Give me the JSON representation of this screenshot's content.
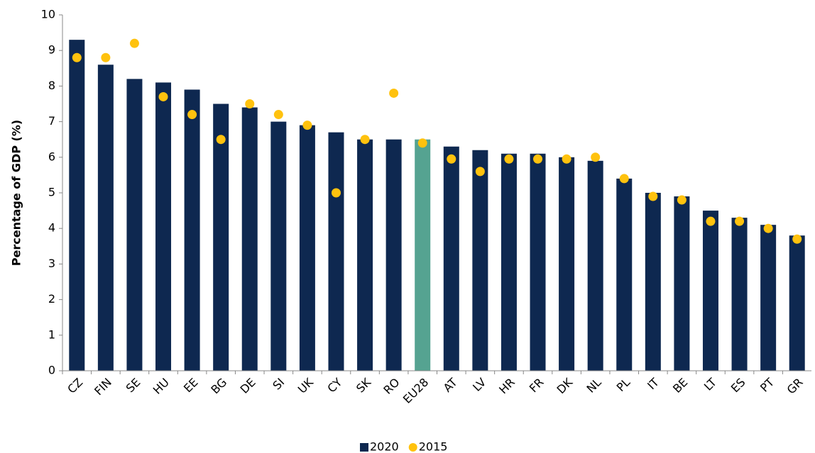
{
  "chart_data": {
    "type": "bar",
    "ylabel": "Percentage of GDP (%)",
    "categories": [
      "CZ",
      "FIN",
      "SE",
      "HU",
      "EE",
      "BG",
      "DE",
      "SI",
      "UK",
      "CY",
      "SK",
      "RO",
      "EU28",
      "AT",
      "LV",
      "HR",
      "FR",
      "DK",
      "NL",
      "PL",
      "IT",
      "BE",
      "LT",
      "ES",
      "PT",
      "GR"
    ],
    "series": [
      {
        "name": "2020",
        "type": "bar",
        "color": "#0e2850",
        "colors": [
          "#0e2850",
          "#0e2850",
          "#0e2850",
          "#0e2850",
          "#0e2850",
          "#0e2850",
          "#0e2850",
          "#0e2850",
          "#0e2850",
          "#0e2850",
          "#0e2850",
          "#0e2850",
          "#55a391",
          "#0e2850",
          "#0e2850",
          "#0e2850",
          "#0e2850",
          "#0e2850",
          "#0e2850",
          "#0e2850",
          "#0e2850",
          "#0e2850",
          "#0e2850",
          "#0e2850",
          "#0e2850",
          "#0e2850"
        ],
        "values": [
          9.3,
          8.6,
          8.2,
          8.1,
          7.9,
          7.5,
          7.4,
          7.0,
          6.9,
          6.7,
          6.5,
          6.5,
          6.5,
          6.3,
          6.2,
          6.1,
          6.1,
          6.0,
          5.9,
          5.4,
          5.0,
          4.9,
          4.5,
          4.3,
          4.1,
          3.8
        ]
      },
      {
        "name": "2015",
        "type": "scatter",
        "color": "#ffc20e",
        "values": [
          8.8,
          8.8,
          9.2,
          7.7,
          7.2,
          6.5,
          7.5,
          7.2,
          6.9,
          5.0,
          6.5,
          7.8,
          6.4,
          5.95,
          5.6,
          5.95,
          5.95,
          5.95,
          6.0,
          5.4,
          4.9,
          4.8,
          4.2,
          4.2,
          4.0,
          3.7
        ]
      }
    ],
    "ylim": [
      0,
      10
    ],
    "yticks": [
      0,
      1,
      2,
      3,
      4,
      5,
      6,
      7,
      8,
      9,
      10
    ],
    "grid": false,
    "legend": "bottom"
  }
}
